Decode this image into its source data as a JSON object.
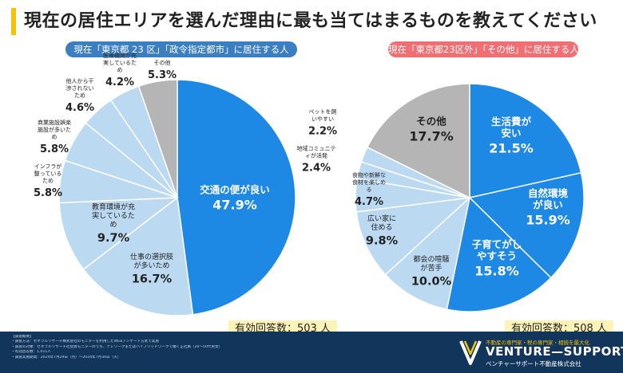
{
  "title": "現在の居住エリアを選んだ理由に最も当てはまるものを教えてください",
  "colors": {
    "accent": "#f5c40a",
    "primary": "#1e88e5",
    "light": "#bcd9f2",
    "gray": "#b5b5b5",
    "footer": "#12355b"
  },
  "chart_data": [
    {
      "type": "pie",
      "title": "現在「東京都 23 区」「政令指定都市」に居住する人",
      "slices": [
        {
          "label": "交通の便が良い",
          "value": 47.9,
          "value_label": "47.9%"
        },
        {
          "label": "仕事の選択肢が多いため",
          "value": 16.7,
          "value_label": "16.7%"
        },
        {
          "label": "教育環境が充実しているため",
          "value": 9.7,
          "value_label": "9.7%"
        },
        {
          "label": "インフラが整っているため",
          "value": 5.8,
          "value_label": "5.8%"
        },
        {
          "label": "商業施設娯楽施設が多いため",
          "value": 5.8,
          "value_label": "5.8%"
        },
        {
          "label": "他人から干渉されないため",
          "value": 4.6,
          "value_label": "4.6%"
        },
        {
          "label": "医療機関が充実しているため",
          "value": 4.2,
          "value_label": "4.2%"
        },
        {
          "label": "その他",
          "value": 5.3,
          "value_label": "5.3%"
        }
      ],
      "sample": "有効回答数：503 人"
    },
    {
      "type": "pie",
      "title": "現在「東京都23区外」「その他」に居住する人",
      "slices": [
        {
          "label": "生活費が安い",
          "value": 21.5,
          "value_label": "21.5%"
        },
        {
          "label": "自然環境が良い",
          "value": 15.9,
          "value_label": "15.9%"
        },
        {
          "label": "子育てがしやすそう",
          "value": 15.8,
          "value_label": "15.8%"
        },
        {
          "label": "都会の喧騒が苦手",
          "value": 10.0,
          "value_label": "10.0%"
        },
        {
          "label": "広い家に住める",
          "value": 9.8,
          "value_label": "9.8%"
        },
        {
          "label": "食物や新鮮な食材を楽しめる",
          "value": 4.7,
          "value_label": "4.7%"
        },
        {
          "label": "地域コミュニティが活発",
          "value": 2.4,
          "value_label": "2.4%"
        },
        {
          "label": "ペットを飼いやすい",
          "value": 2.2,
          "value_label": "2.2%"
        },
        {
          "label": "その他",
          "value": 17.7,
          "value_label": "17.7%"
        }
      ],
      "sample": "有効回答数：508 人"
    }
  ],
  "footer": {
    "notes": [
      "【調査概要】",
      "・調査方法：ゼネラルリサーチ株式会社のモニターを利用したWEBアンケート方式で実施",
      "・調査の対象：ゼネラルリサーチ社登録モニターのうち、テレワークまたはハイブリッドワークで働く正社員（20～50代男女）",
      "・有効回答数：1,011人",
      "・調査実施期間：2024年7月29日（月）～2024年7月30日（火）"
    ],
    "taglines": "不動産の専門家・税の専門家・相続を最大化",
    "brand": "VENTURE—SUPPORT",
    "brand_sub": "ベンチャーサポート不動産株式会社"
  }
}
